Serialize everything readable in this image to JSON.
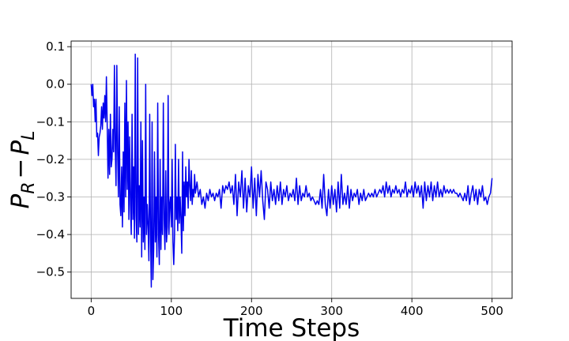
{
  "chart_data": {
    "type": "line",
    "title": "",
    "xlabel": "Time Steps",
    "ylabel": {
      "base1": "P",
      "sub1": "R",
      "op": "−",
      "base2": "P",
      "sub2": "L"
    },
    "xlim": [
      -25,
      525
    ],
    "ylim": [
      -0.57,
      0.115
    ],
    "xticks": [
      0,
      100,
      200,
      300,
      400,
      500
    ],
    "yticks": [
      0.1,
      0.0,
      -0.1,
      -0.2,
      -0.3,
      -0.4,
      -0.5
    ],
    "xtick_labels": [
      "0",
      "100",
      "200",
      "300",
      "400",
      "500"
    ],
    "ytick_labels": [
      "0.1",
      "0.0",
      "−0.1",
      "−0.2",
      "−0.3",
      "−0.4",
      "−0.5"
    ],
    "grid": true,
    "series": [
      {
        "color": "#0000ee",
        "points": [
          [
            0,
            0.0
          ],
          [
            1,
            -0.03
          ],
          [
            2,
            0.0
          ],
          [
            3,
            -0.06
          ],
          [
            4,
            -0.04
          ],
          [
            5,
            -0.1
          ],
          [
            6,
            -0.04
          ],
          [
            7,
            -0.14
          ],
          [
            8,
            -0.13
          ],
          [
            9,
            -0.19
          ],
          [
            10,
            -0.14
          ],
          [
            11,
            -0.13
          ],
          [
            12,
            -0.11
          ],
          [
            13,
            -0.06
          ],
          [
            14,
            -0.12
          ],
          [
            15,
            -0.05
          ],
          [
            16,
            -0.09
          ],
          [
            17,
            -0.03
          ],
          [
            18,
            -0.1
          ],
          [
            19,
            0.02
          ],
          [
            20,
            -0.11
          ],
          [
            21,
            -0.25
          ],
          [
            22,
            -0.12
          ],
          [
            23,
            -0.24
          ],
          [
            24,
            -0.08
          ],
          [
            25,
            -0.22
          ],
          [
            26,
            -0.2
          ],
          [
            27,
            -0.12
          ],
          [
            28,
            -0.18
          ],
          [
            29,
            0.05
          ],
          [
            30,
            -0.16
          ],
          [
            31,
            -0.27
          ],
          [
            32,
            0.05
          ],
          [
            33,
            -0.18
          ],
          [
            34,
            -0.3
          ],
          [
            35,
            -0.06
          ],
          [
            36,
            -0.32
          ],
          [
            37,
            -0.35
          ],
          [
            38,
            -0.22
          ],
          [
            39,
            -0.38
          ],
          [
            40,
            -0.18
          ],
          [
            41,
            -0.34
          ],
          [
            42,
            -0.05
          ],
          [
            43,
            -0.3
          ],
          [
            44,
            0.01
          ],
          [
            45,
            -0.28
          ],
          [
            46,
            -0.1
          ],
          [
            47,
            -0.36
          ],
          [
            48,
            -0.14
          ],
          [
            49,
            -0.32
          ],
          [
            50,
            -0.4
          ],
          [
            51,
            -0.08
          ],
          [
            52,
            -0.36
          ],
          [
            53,
            -0.22
          ],
          [
            54,
            -0.41
          ],
          [
            55,
            0.08
          ],
          [
            56,
            -0.35
          ],
          [
            57,
            -0.42
          ],
          [
            58,
            0.07
          ],
          [
            59,
            -0.4
          ],
          [
            60,
            -0.27
          ],
          [
            61,
            -0.38
          ],
          [
            62,
            -0.1
          ],
          [
            63,
            -0.46
          ],
          [
            64,
            -0.15
          ],
          [
            65,
            -0.42
          ],
          [
            66,
            -0.3
          ],
          [
            67,
            -0.44
          ],
          [
            68,
            0.0
          ],
          [
            69,
            -0.4
          ],
          [
            70,
            -0.32
          ],
          [
            71,
            -0.38
          ],
          [
            72,
            -0.47
          ],
          [
            73,
            -0.08
          ],
          [
            74,
            -0.4
          ],
          [
            75,
            -0.54
          ],
          [
            76,
            -0.1
          ],
          [
            77,
            -0.52
          ],
          [
            78,
            -0.44
          ],
          [
            79,
            -0.18
          ],
          [
            80,
            -0.42
          ],
          [
            81,
            -0.3
          ],
          [
            82,
            -0.46
          ],
          [
            83,
            -0.05
          ],
          [
            84,
            -0.4
          ],
          [
            85,
            -0.48
          ],
          [
            86,
            -0.2
          ],
          [
            87,
            -0.44
          ],
          [
            88,
            -0.3
          ],
          [
            89,
            -0.4
          ],
          [
            90,
            -0.05
          ],
          [
            91,
            -0.36
          ],
          [
            92,
            -0.44
          ],
          [
            93,
            -0.23
          ],
          [
            94,
            -0.42
          ],
          [
            95,
            -0.38
          ],
          [
            96,
            -0.03
          ],
          [
            97,
            -0.4
          ],
          [
            98,
            -0.32
          ],
          [
            99,
            -0.3
          ],
          [
            100,
            -0.38
          ],
          [
            101,
            -0.2
          ],
          [
            102,
            -0.42
          ],
          [
            103,
            -0.48
          ],
          [
            104,
            -0.4
          ],
          [
            105,
            -0.16
          ],
          [
            106,
            -0.36
          ],
          [
            107,
            -0.3
          ],
          [
            108,
            -0.39
          ],
          [
            109,
            -0.2
          ],
          [
            110,
            -0.37
          ],
          [
            111,
            -0.3
          ],
          [
            112,
            -0.36
          ],
          [
            113,
            -0.45
          ],
          [
            114,
            -0.18
          ],
          [
            115,
            -0.39
          ],
          [
            116,
            -0.26
          ],
          [
            117,
            -0.35
          ],
          [
            118,
            -0.22
          ],
          [
            119,
            -0.3
          ],
          [
            120,
            -0.26
          ],
          [
            121,
            -0.33
          ],
          [
            122,
            -0.2
          ],
          [
            123,
            -0.27
          ],
          [
            124,
            -0.31
          ],
          [
            125,
            -0.23
          ],
          [
            126,
            -0.32
          ],
          [
            127,
            -0.28
          ],
          [
            128,
            -0.3
          ],
          [
            129,
            -0.24
          ],
          [
            130,
            -0.29
          ],
          [
            132,
            -0.26
          ],
          [
            134,
            -0.3
          ],
          [
            136,
            -0.28
          ],
          [
            138,
            -0.32
          ],
          [
            140,
            -0.3
          ],
          [
            142,
            -0.33
          ],
          [
            144,
            -0.29
          ],
          [
            146,
            -0.31
          ],
          [
            148,
            -0.28
          ],
          [
            150,
            -0.3
          ],
          [
            152,
            -0.29
          ],
          [
            154,
            -0.31
          ],
          [
            156,
            -0.29
          ],
          [
            158,
            -0.3
          ],
          [
            160,
            -0.28
          ],
          [
            162,
            -0.33
          ],
          [
            164,
            -0.27
          ],
          [
            166,
            -0.29
          ],
          [
            168,
            -0.27
          ],
          [
            170,
            -0.28
          ],
          [
            172,
            -0.26
          ],
          [
            174,
            -0.29
          ],
          [
            176,
            -0.27
          ],
          [
            178,
            -0.32
          ],
          [
            180,
            -0.24
          ],
          [
            182,
            -0.35
          ],
          [
            184,
            -0.26
          ],
          [
            186,
            -0.3
          ],
          [
            188,
            -0.23
          ],
          [
            190,
            -0.33
          ],
          [
            192,
            -0.25
          ],
          [
            194,
            -0.34
          ],
          [
            196,
            -0.27
          ],
          [
            198,
            -0.3
          ],
          [
            200,
            -0.22
          ],
          [
            202,
            -0.33
          ],
          [
            204,
            -0.25
          ],
          [
            206,
            -0.35
          ],
          [
            208,
            -0.24
          ],
          [
            210,
            -0.3
          ],
          [
            212,
            -0.23
          ],
          [
            214,
            -0.31
          ],
          [
            216,
            -0.36
          ],
          [
            218,
            -0.26
          ],
          [
            220,
            -0.28
          ],
          [
            222,
            -0.33
          ],
          [
            224,
            -0.26
          ],
          [
            226,
            -0.31
          ],
          [
            228,
            -0.28
          ],
          [
            230,
            -0.32
          ],
          [
            232,
            -0.27
          ],
          [
            234,
            -0.31
          ],
          [
            236,
            -0.26
          ],
          [
            238,
            -0.32
          ],
          [
            240,
            -0.28
          ],
          [
            242,
            -0.3
          ],
          [
            244,
            -0.27
          ],
          [
            246,
            -0.31
          ],
          [
            248,
            -0.29
          ],
          [
            250,
            -0.3
          ],
          [
            252,
            -0.28
          ],
          [
            254,
            -0.31
          ],
          [
            256,
            -0.25
          ],
          [
            258,
            -0.32
          ],
          [
            260,
            -0.27
          ],
          [
            262,
            -0.31
          ],
          [
            264,
            -0.29
          ],
          [
            266,
            -0.3
          ],
          [
            268,
            -0.27
          ],
          [
            270,
            -0.3
          ],
          [
            272,
            -0.29
          ],
          [
            274,
            -0.31
          ],
          [
            276,
            -0.3
          ],
          [
            278,
            -0.31
          ],
          [
            280,
            -0.32
          ],
          [
            282,
            -0.31
          ],
          [
            284,
            -0.32
          ],
          [
            286,
            -0.28
          ],
          [
            288,
            -0.33
          ],
          [
            290,
            -0.24
          ],
          [
            292,
            -0.32
          ],
          [
            294,
            -0.35
          ],
          [
            296,
            -0.28
          ],
          [
            298,
            -0.33
          ],
          [
            300,
            -0.27
          ],
          [
            302,
            -0.32
          ],
          [
            304,
            -0.28
          ],
          [
            306,
            -0.34
          ],
          [
            308,
            -0.26
          ],
          [
            310,
            -0.33
          ],
          [
            312,
            -0.24
          ],
          [
            314,
            -0.32
          ],
          [
            316,
            -0.29
          ],
          [
            318,
            -0.32
          ],
          [
            320,
            -0.27
          ],
          [
            322,
            -0.33
          ],
          [
            324,
            -0.28
          ],
          [
            326,
            -0.31
          ],
          [
            328,
            -0.29
          ],
          [
            330,
            -0.3
          ],
          [
            332,
            -0.28
          ],
          [
            334,
            -0.32
          ],
          [
            336,
            -0.29
          ],
          [
            338,
            -0.31
          ],
          [
            340,
            -0.28
          ],
          [
            342,
            -0.31
          ],
          [
            344,
            -0.3
          ],
          [
            346,
            -0.29
          ],
          [
            348,
            -0.3
          ],
          [
            350,
            -0.29
          ],
          [
            352,
            -0.3
          ],
          [
            354,
            -0.28
          ],
          [
            356,
            -0.3
          ],
          [
            358,
            -0.29
          ],
          [
            360,
            -0.28
          ],
          [
            362,
            -0.29
          ],
          [
            364,
            -0.27
          ],
          [
            366,
            -0.3
          ],
          [
            368,
            -0.26
          ],
          [
            370,
            -0.29
          ],
          [
            372,
            -0.27
          ],
          [
            374,
            -0.3
          ],
          [
            376,
            -0.28
          ],
          [
            378,
            -0.29
          ],
          [
            380,
            -0.27
          ],
          [
            382,
            -0.29
          ],
          [
            384,
            -0.28
          ],
          [
            386,
            -0.3
          ],
          [
            388,
            -0.28
          ],
          [
            390,
            -0.29
          ],
          [
            392,
            -0.26
          ],
          [
            394,
            -0.3
          ],
          [
            396,
            -0.28
          ],
          [
            398,
            -0.29
          ],
          [
            400,
            -0.27
          ],
          [
            402,
            -0.3
          ],
          [
            404,
            -0.26
          ],
          [
            406,
            -0.29
          ],
          [
            408,
            -0.27
          ],
          [
            410,
            -0.3
          ],
          [
            412,
            -0.27
          ],
          [
            414,
            -0.33
          ],
          [
            416,
            -0.26
          ],
          [
            418,
            -0.31
          ],
          [
            420,
            -0.27
          ],
          [
            422,
            -0.3
          ],
          [
            424,
            -0.26
          ],
          [
            426,
            -0.31
          ],
          [
            428,
            -0.27
          ],
          [
            430,
            -0.3
          ],
          [
            432,
            -0.26
          ],
          [
            434,
            -0.3
          ],
          [
            436,
            -0.28
          ],
          [
            438,
            -0.3
          ],
          [
            440,
            -0.27
          ],
          [
            442,
            -0.29
          ],
          [
            444,
            -0.28
          ],
          [
            446,
            -0.29
          ],
          [
            448,
            -0.28
          ],
          [
            450,
            -0.29
          ],
          [
            452,
            -0.28
          ],
          [
            454,
            -0.29
          ],
          [
            456,
            -0.29
          ],
          [
            458,
            -0.3
          ],
          [
            460,
            -0.29
          ],
          [
            462,
            -0.3
          ],
          [
            464,
            -0.31
          ],
          [
            466,
            -0.29
          ],
          [
            468,
            -0.31
          ],
          [
            470,
            -0.27
          ],
          [
            472,
            -0.32
          ],
          [
            474,
            -0.29
          ],
          [
            476,
            -0.27
          ],
          [
            478,
            -0.31
          ],
          [
            480,
            -0.28
          ],
          [
            482,
            -0.32
          ],
          [
            484,
            -0.28
          ],
          [
            486,
            -0.3
          ],
          [
            488,
            -0.27
          ],
          [
            490,
            -0.31
          ],
          [
            492,
            -0.3
          ],
          [
            494,
            -0.32
          ],
          [
            496,
            -0.3
          ],
          [
            498,
            -0.29
          ],
          [
            500,
            -0.25
          ]
        ]
      }
    ]
  }
}
